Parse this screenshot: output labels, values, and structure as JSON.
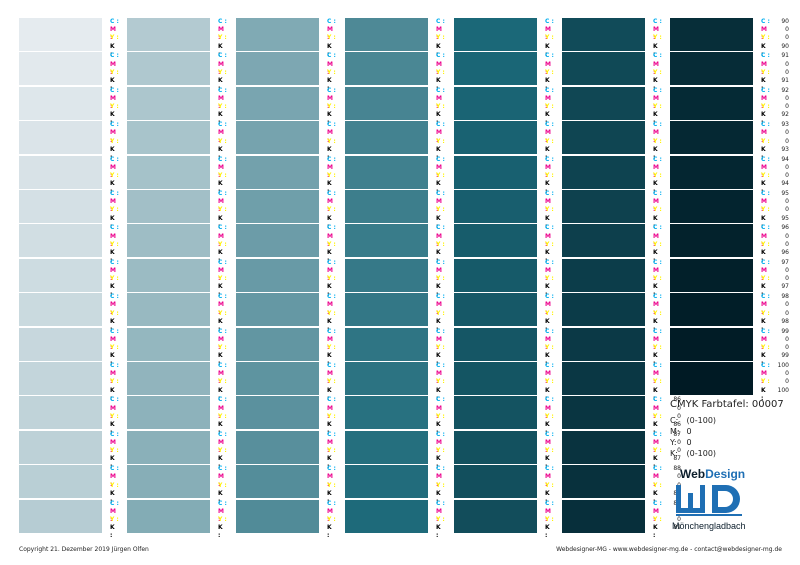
{
  "sheet": {
    "labels": {
      "c": "C",
      "m": "M",
      "y": "Y",
      "k": "K"
    },
    "label_colors": {
      "c": "#00aeef",
      "m": "#ec008c",
      "y": "#fff200",
      "k": "#000000"
    },
    "swatch_color_range": {
      "from": "#e5ebef",
      "to": "#001a24",
      "via": "#1b6878"
    },
    "columns": [
      {
        "k_values": [
          0,
          1,
          2,
          3,
          4,
          5,
          6,
          7,
          8,
          9,
          10,
          11,
          12,
          13,
          14
        ]
      },
      {
        "k_values": [
          15,
          16,
          17,
          18,
          19,
          20,
          21,
          22,
          23,
          24,
          25,
          26,
          27,
          28,
          29
        ]
      },
      {
        "k_values": [
          30,
          31,
          32,
          33,
          34,
          35,
          36,
          37,
          38,
          39,
          40,
          41,
          42,
          43,
          44
        ]
      },
      {
        "k_values": [
          45,
          46,
          47,
          48,
          49,
          50,
          51,
          52,
          53,
          54,
          55,
          56,
          57,
          58,
          59
        ]
      },
      {
        "k_values": [
          60,
          61,
          62,
          63,
          64,
          65,
          66,
          67,
          68,
          69,
          70,
          71,
          72,
          73,
          74
        ]
      },
      {
        "k_values": [
          75,
          76,
          77,
          78,
          79,
          80,
          81,
          82,
          83,
          84,
          85,
          86,
          87,
          88,
          89
        ]
      },
      {
        "k_values": [
          90,
          91,
          92,
          93,
          94,
          95,
          96,
          97,
          98,
          99,
          100
        ]
      }
    ]
  },
  "legend": {
    "title": "CMYK Farbtafel: 00007",
    "rows": [
      {
        "key": "C:",
        "value": "(0-100)"
      },
      {
        "key": "M:",
        "value": "0"
      },
      {
        "key": "Y:",
        "value": "0"
      },
      {
        "key": "K:",
        "value": "(0-100)"
      }
    ]
  },
  "logo": {
    "top_text": "WebDesign",
    "letters": "WD",
    "bottom_text": "Mönchengladbach",
    "colors": {
      "blue": "#1f6fb4",
      "dark": "#0c1e2c"
    }
  },
  "footer": {
    "left": "Copyright 21. Dezember 2019 Jürgen Olfen",
    "right": "Webdesigner-MG - www.webdesigner-mg.de - contact@webdesigner-mg.de"
  }
}
